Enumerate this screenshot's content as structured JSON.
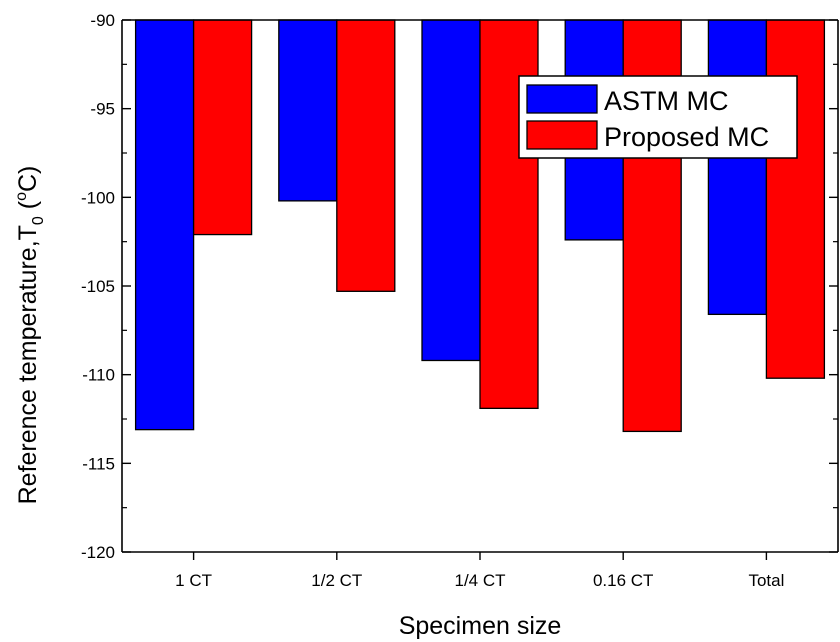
{
  "chart_data": {
    "type": "bar",
    "categories": [
      "1 CT",
      "1/2 CT",
      "1/4 CT",
      "0.16 CT",
      "Total"
    ],
    "series": [
      {
        "name": "ASTM MC",
        "color": "#0000ff",
        "values": [
          -113.1,
          -100.2,
          -109.2,
          -102.4,
          -106.6
        ]
      },
      {
        "name": "Proposed MC",
        "color": "#ff0000",
        "values": [
          -102.1,
          -105.3,
          -111.9,
          -113.2,
          -110.2
        ]
      }
    ],
    "xlabel": "Specimen size",
    "ylabel_main": "Reference temperature,T",
    "ylabel_sub": "0",
    "ylabel_paren_open": " (",
    "ylabel_sup": "o",
    "ylabel_unit": "C)",
    "ylim": [
      -120,
      -90
    ],
    "yticks": [
      "-90",
      "-95",
      "-100",
      "-105",
      "-110",
      "-115",
      "-120"
    ],
    "legend_position": "top-right",
    "grid": false
  }
}
